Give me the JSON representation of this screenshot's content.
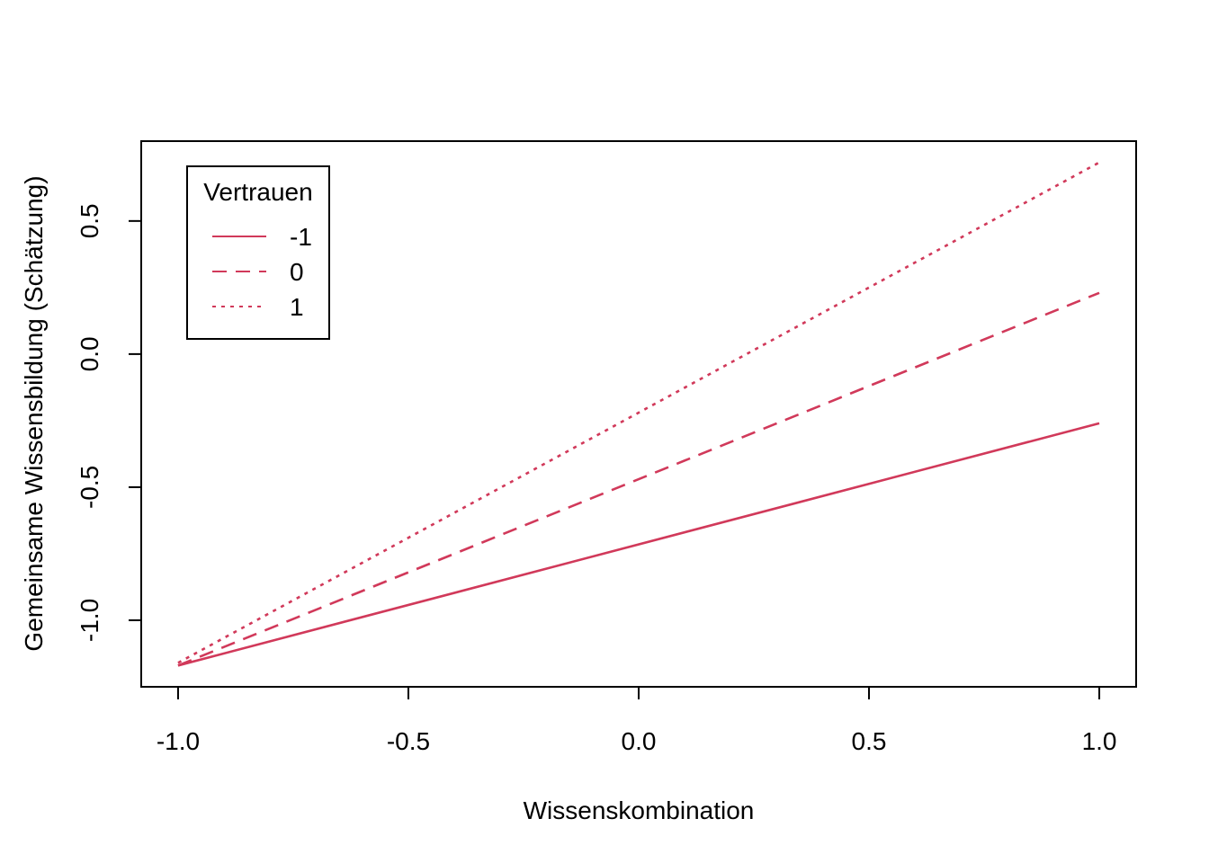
{
  "chart_data": {
    "type": "line",
    "title": "",
    "xlabel": "Wissenskombination",
    "ylabel": "Gemeinsame Wissensbildung (Schätzung)",
    "xlim": [
      -1.08,
      1.08
    ],
    "ylim": [
      -1.25,
      0.8
    ],
    "xticks": [
      "-1.0",
      "-0.5",
      "0.0",
      "0.5",
      "1.0"
    ],
    "yticks": [
      "-1.0",
      "-0.5",
      "0.0",
      "0.5"
    ],
    "grid": false,
    "legend": {
      "title": "Vertrauen",
      "placement": "top-left"
    },
    "series": [
      {
        "name": "-1",
        "dash": "solid",
        "x": [
          -1.0,
          1.0
        ],
        "y": [
          -1.17,
          -0.26
        ]
      },
      {
        "name": "0",
        "dash": "dashed",
        "x": [
          -1.0,
          1.0
        ],
        "y": [
          -1.17,
          0.23
        ]
      },
      {
        "name": "1",
        "dash": "dotted",
        "x": [
          -1.0,
          1.0
        ],
        "y": [
          -1.16,
          0.72
        ]
      }
    ],
    "color": "#d1395a"
  }
}
